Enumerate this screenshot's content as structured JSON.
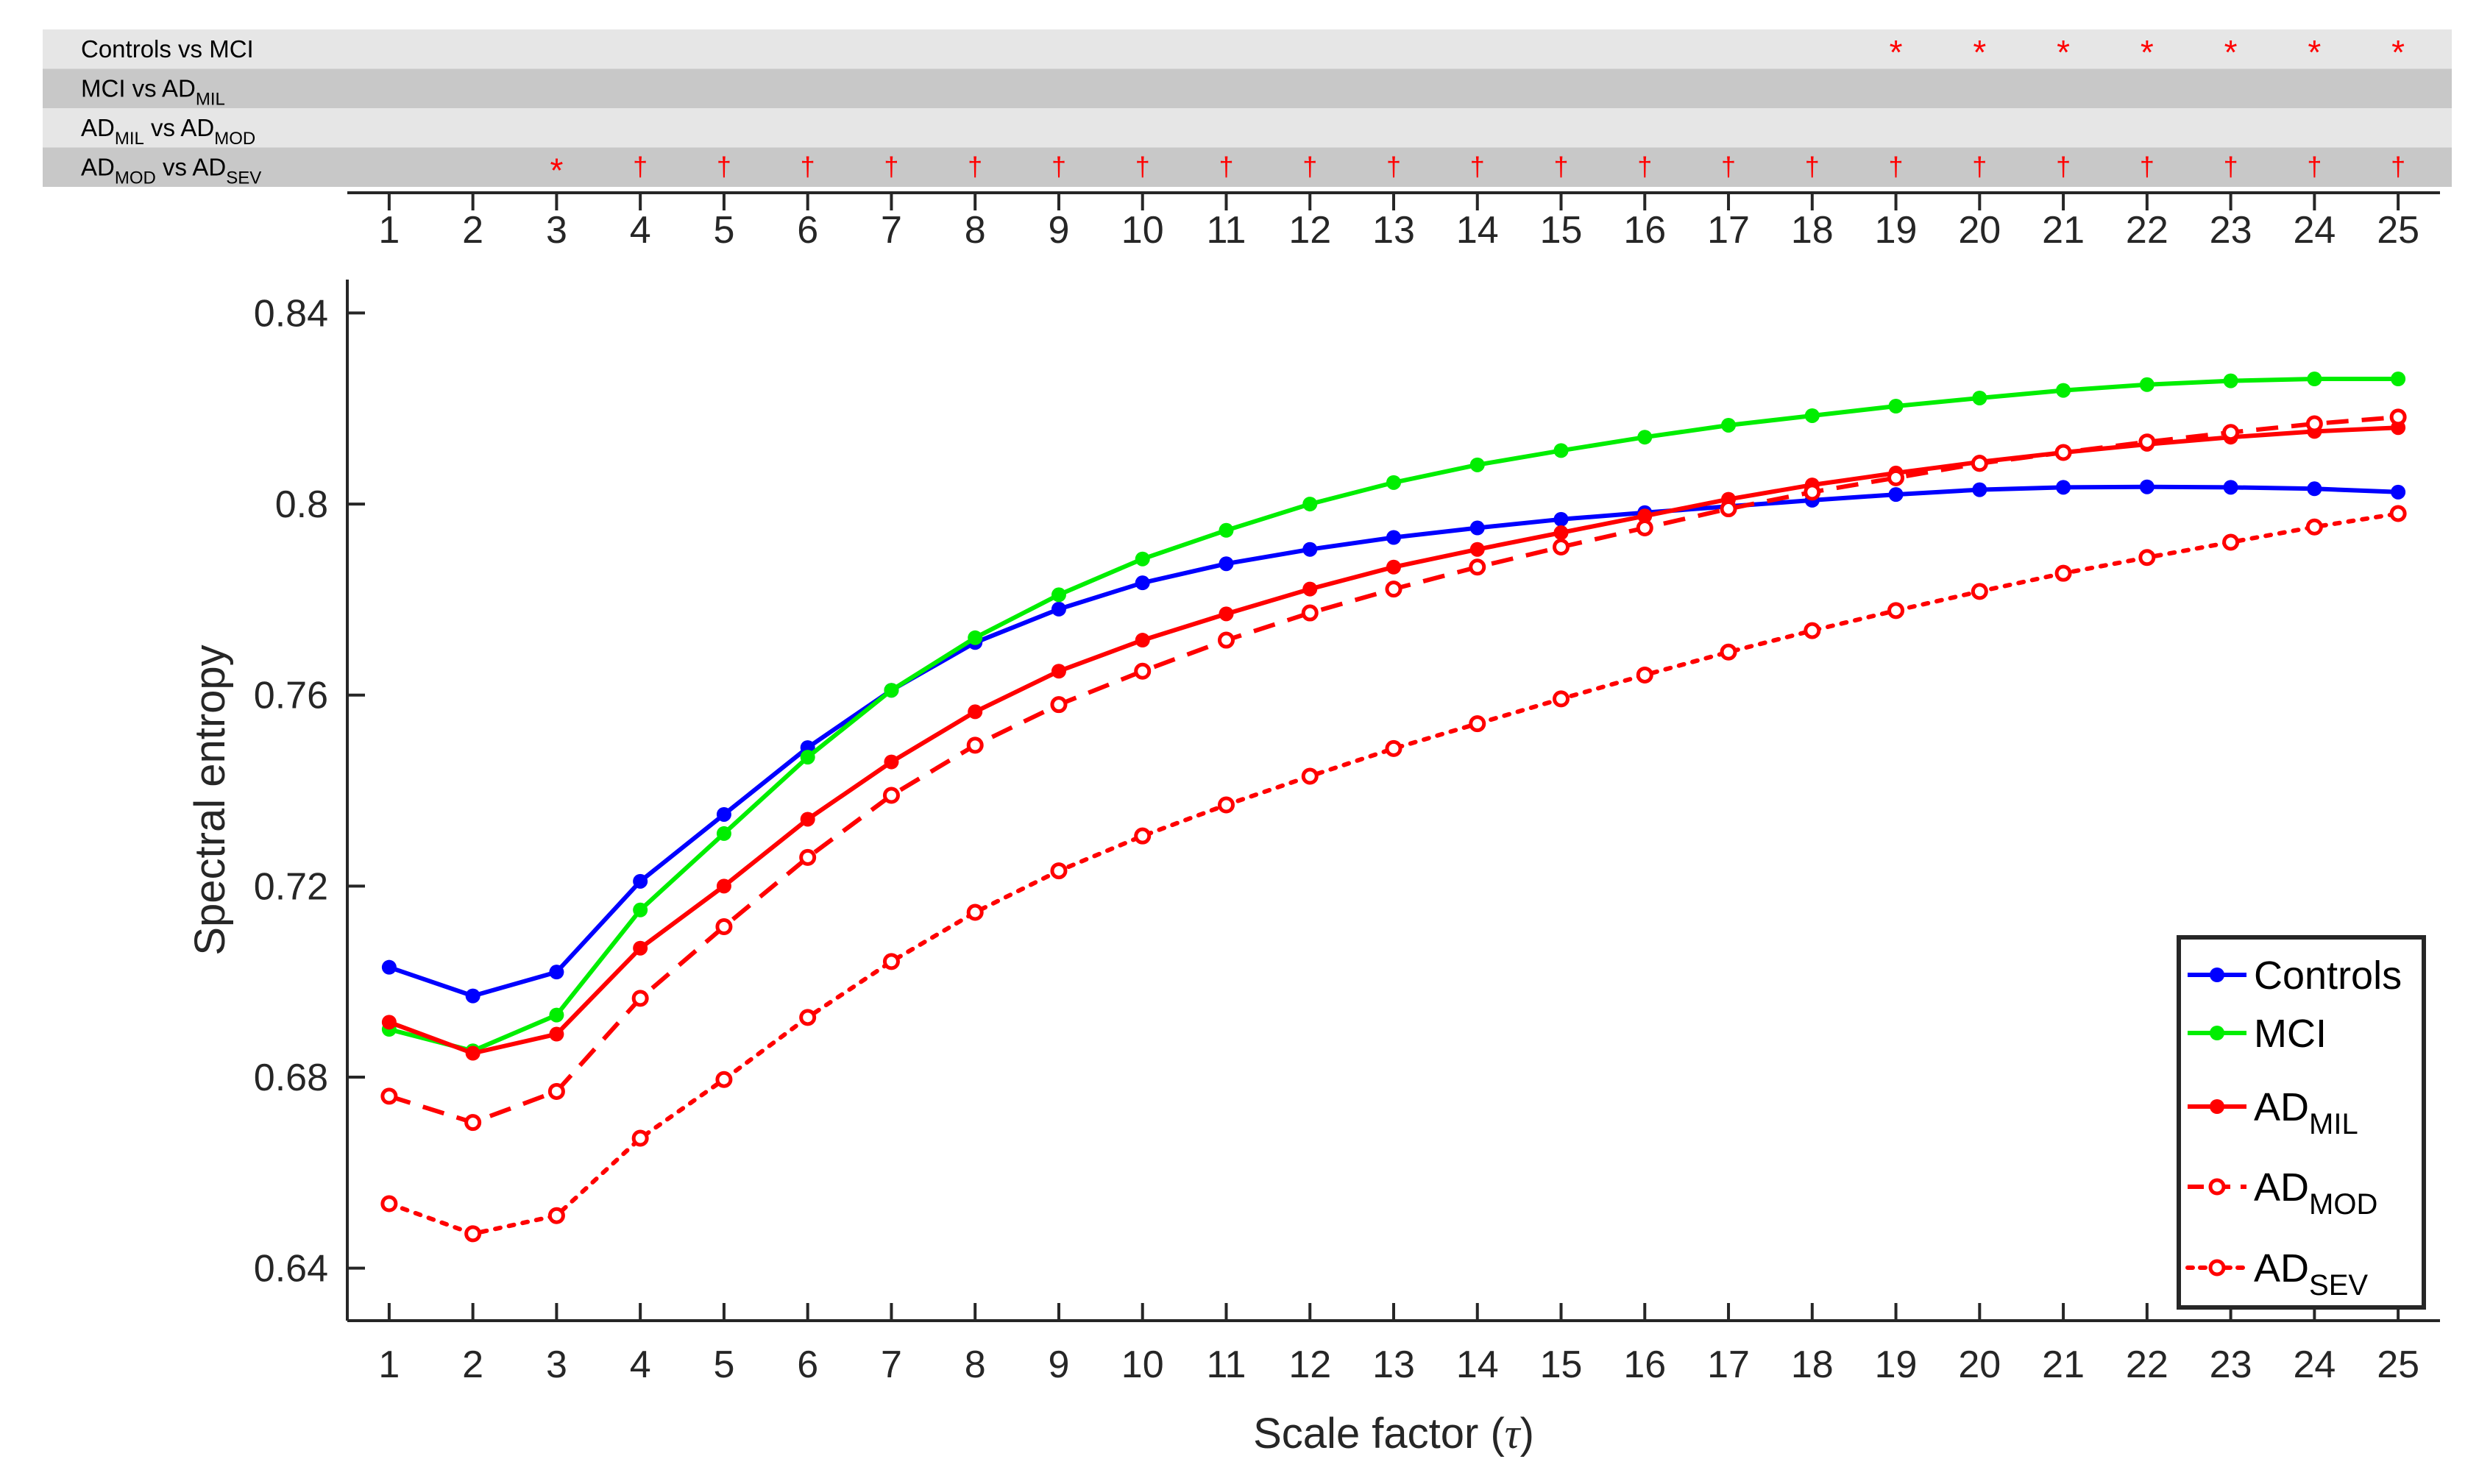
{
  "chart_data": {
    "type": "line",
    "xlabel_text": "Scale factor (",
    "xlabel_symbol": "τ",
    "xlabel_close": ")",
    "ylabel": "Spectral entropy",
    "x": [
      1,
      2,
      3,
      4,
      5,
      6,
      7,
      8,
      9,
      10,
      11,
      12,
      13,
      14,
      15,
      16,
      17,
      18,
      19,
      20,
      21,
      22,
      23,
      24,
      25
    ],
    "xlim": [
      0.5,
      25.5
    ],
    "ylim": [
      0.629,
      0.847
    ],
    "yticks": [
      0.64,
      0.68,
      0.72,
      0.76,
      0.8,
      0.84
    ],
    "ytick_labels": [
      "0.64",
      "0.68",
      "0.72",
      "0.76",
      "0.8",
      "0.84"
    ],
    "legend_position": "bottom-right",
    "series": [
      {
        "name": "Controls",
        "sub": "",
        "color": "#0000ff",
        "dash": "solid",
        "marker": "filled",
        "values": [
          0.703,
          0.697,
          0.702,
          0.721,
          0.735,
          0.749,
          0.761,
          0.771,
          0.778,
          0.7835,
          0.7875,
          0.7905,
          0.793,
          0.795,
          0.7968,
          0.7982,
          0.7995,
          0.8008,
          0.802,
          0.803,
          0.8035,
          0.8036,
          0.8035,
          0.8032,
          0.8025
        ]
      },
      {
        "name": "MCI",
        "sub": "",
        "color": "#00ee00",
        "dash": "solid",
        "marker": "filled",
        "values": [
          0.69,
          0.6855,
          0.693,
          0.715,
          0.731,
          0.747,
          0.761,
          0.772,
          0.781,
          0.7885,
          0.7945,
          0.8,
          0.8045,
          0.8082,
          0.8112,
          0.814,
          0.8165,
          0.8185,
          0.8205,
          0.8222,
          0.8238,
          0.825,
          0.8258,
          0.8262,
          0.8262
        ]
      },
      {
        "name": "AD",
        "sub": "MIL",
        "color": "#ff0000",
        "dash": "solid",
        "marker": "filled",
        "values": [
          0.6915,
          0.685,
          0.689,
          0.707,
          0.72,
          0.734,
          0.746,
          0.7565,
          0.765,
          0.7715,
          0.777,
          0.7822,
          0.7868,
          0.7905,
          0.794,
          0.7975,
          0.801,
          0.804,
          0.8065,
          0.8088,
          0.8108,
          0.8125,
          0.814,
          0.8152,
          0.816
        ]
      },
      {
        "name": "AD",
        "sub": "MOD",
        "color": "#ff0000",
        "dash": "dashed",
        "marker": "open",
        "values": [
          0.676,
          0.6705,
          0.677,
          0.6965,
          0.7115,
          0.726,
          0.739,
          0.7495,
          0.758,
          0.765,
          0.7715,
          0.7772,
          0.7822,
          0.7868,
          0.791,
          0.795,
          0.799,
          0.8025,
          0.8055,
          0.8085,
          0.8108,
          0.813,
          0.815,
          0.8168,
          0.8182
        ]
      },
      {
        "name": "AD",
        "sub": "SEV",
        "color": "#ff0000",
        "dash": "dotted",
        "marker": "open",
        "values": [
          0.6535,
          0.6472,
          0.651,
          0.6672,
          0.6795,
          0.6925,
          0.7042,
          0.7145,
          0.7232,
          0.7305,
          0.737,
          0.743,
          0.7488,
          0.754,
          0.7592,
          0.7642,
          0.769,
          0.7735,
          0.7777,
          0.7817,
          0.7855,
          0.7888,
          0.792,
          0.7952,
          0.798
        ]
      }
    ]
  },
  "significance": {
    "rows": [
      {
        "pre": "Controls vs MCI",
        "parts": []
      },
      {
        "pre": "MCI vs AD",
        "parts": [
          {
            "sub": "MIL",
            "post": ""
          }
        ]
      },
      {
        "pre": "AD",
        "parts": [
          {
            "sub": "MIL",
            "post": " vs AD"
          },
          {
            "sub": "MOD",
            "post": ""
          }
        ]
      },
      {
        "pre": "AD",
        "parts": [
          {
            "sub": "MOD",
            "post": " vs AD"
          },
          {
            "sub": "SEV",
            "post": ""
          }
        ]
      }
    ],
    "marks": [
      {
        "row": 0,
        "symbol": "*",
        "at": [
          19,
          20,
          21,
          22,
          23,
          24,
          25
        ]
      },
      {
        "row": 3,
        "symbol": "*",
        "at": [
          3
        ]
      },
      {
        "row": 3,
        "symbol": "†",
        "at": [
          4,
          5,
          6,
          7,
          8,
          9,
          10,
          11,
          12,
          13,
          14,
          15,
          16,
          17,
          18,
          19,
          20,
          21,
          22,
          23,
          24,
          25
        ]
      }
    ],
    "mark_color": "#ff0000",
    "row_colors": [
      "#e6e6e6",
      "#c8c8c8"
    ]
  }
}
